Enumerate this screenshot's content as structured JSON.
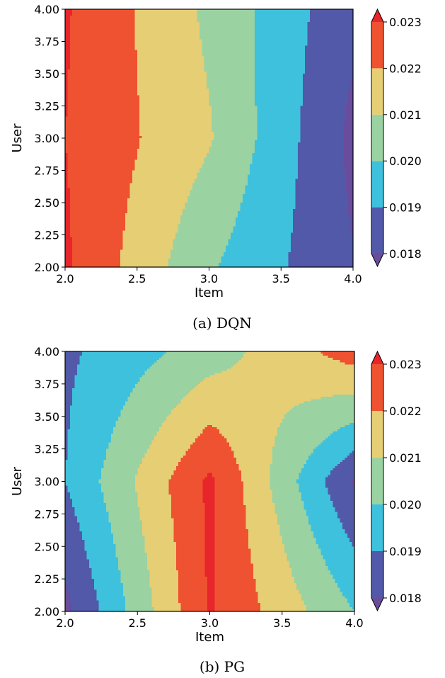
{
  "chart_data": [
    {
      "type": "heatmap",
      "subtype": "filled-contour",
      "caption": "(a) DQN",
      "xlabel": "Item",
      "ylabel": "User",
      "x": [
        2.0,
        3.0,
        4.0
      ],
      "y": [
        2.0,
        3.0,
        4.0
      ],
      "z": [
        [
          0.02315,
          0.02012,
          0.01806
        ],
        [
          0.023,
          0.0211,
          0.01775
        ],
        [
          0.0231,
          0.0208,
          0.01823
        ]
      ],
      "xlim": [
        2.0,
        4.0
      ],
      "ylim": [
        2.0,
        4.0
      ],
      "xticks": [
        "2.0",
        "2.5",
        "3.0",
        "3.5",
        "4.0"
      ],
      "yticks": [
        "2.00",
        "2.25",
        "2.50",
        "2.75",
        "3.00",
        "3.25",
        "3.50",
        "3.75",
        "4.00"
      ],
      "grid": false,
      "colorbar": {
        "levels": [
          0.017,
          0.018,
          0.019,
          0.02,
          0.021,
          0.022,
          0.023,
          0.024
        ],
        "ticks": [
          "0.018",
          "0.019",
          "0.020",
          "0.021",
          "0.022",
          "0.023"
        ],
        "colors": [
          "#6A4C9C",
          "#5159A8",
          "#3EC1DC",
          "#9AD2A2",
          "#E6CE74",
          "#EF5230",
          "#E8252A"
        ]
      }
    },
    {
      "type": "heatmap",
      "subtype": "filled-contour",
      "caption": "(b) PG",
      "xlabel": "Item",
      "ylabel": "User",
      "x": [
        2.0,
        3.0,
        4.0
      ],
      "y": [
        2.0,
        3.0,
        4.0
      ],
      "z": [
        [
          0.0177,
          0.0231,
          0.02
        ],
        [
          0.019,
          0.0232,
          0.0179
        ],
        [
          0.0188,
          0.0205,
          0.0225
        ]
      ],
      "xlim": [
        2.0,
        4.0
      ],
      "ylim": [
        2.0,
        4.0
      ],
      "xticks": [
        "2.0",
        "2.5",
        "3.0",
        "3.5",
        "4.0"
      ],
      "yticks": [
        "2.00",
        "2.25",
        "2.50",
        "2.75",
        "3.00",
        "3.25",
        "3.50",
        "3.75",
        "4.00"
      ],
      "grid": false,
      "colorbar": {
        "levels": [
          0.017,
          0.018,
          0.019,
          0.02,
          0.021,
          0.022,
          0.023,
          0.024
        ],
        "ticks": [
          "0.018",
          "0.019",
          "0.020",
          "0.021",
          "0.022",
          "0.023"
        ],
        "colors": [
          "#6A4C9C",
          "#5159A8",
          "#3EC1DC",
          "#9AD2A2",
          "#E6CE74",
          "#EF5230",
          "#E8252A"
        ]
      }
    }
  ]
}
